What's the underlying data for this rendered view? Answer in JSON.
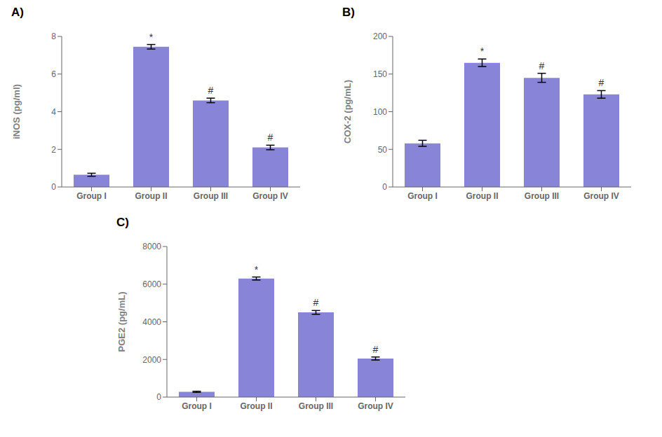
{
  "chart_data": [
    {
      "type": "bar",
      "title": "A)",
      "ylabel": "iNOS (pg/ml)",
      "categories": [
        "Group I",
        "Group II",
        "Group III",
        "Group IV"
      ],
      "values": [
        0.65,
        7.45,
        4.6,
        2.1
      ],
      "errors": [
        0.08,
        0.12,
        0.12,
        0.12
      ],
      "annotations": [
        null,
        "*",
        "#",
        "#"
      ],
      "ylim": [
        0,
        8
      ],
      "yticks": [
        0,
        2,
        4,
        6,
        8
      ],
      "grid": false,
      "color": "#8884d8"
    },
    {
      "type": "bar",
      "title": "B)",
      "ylabel": "COX-2 (pg/mL)",
      "categories": [
        "Group I",
        "Group II",
        "Group III",
        "Group IV"
      ],
      "values": [
        58,
        165,
        145,
        123
      ],
      "errors": [
        4,
        5,
        6,
        5
      ],
      "annotations": [
        null,
        "*",
        "#",
        "#"
      ],
      "ylim": [
        0,
        200
      ],
      "yticks": [
        0,
        50,
        100,
        150,
        200
      ],
      "grid": false,
      "color": "#8884d8"
    },
    {
      "type": "bar",
      "title": "C)",
      "ylabel": "PGE2 (pg/mL)",
      "categories": [
        "Group I",
        "Group II",
        "Group III",
        "Group IV"
      ],
      "values": [
        280,
        6300,
        4500,
        2050
      ],
      "errors": [
        30,
        80,
        100,
        80
      ],
      "annotations": [
        null,
        "*",
        "#",
        "#"
      ],
      "ylim": [
        0,
        8000
      ],
      "yticks": [
        0,
        2000,
        4000,
        6000,
        8000
      ],
      "grid": false,
      "color": "#8884d8"
    }
  ]
}
